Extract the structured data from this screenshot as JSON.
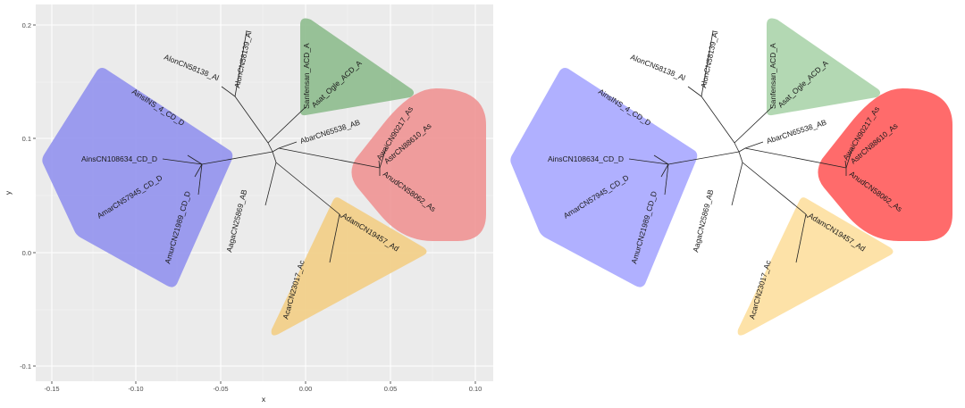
{
  "chart_data": [
    {
      "type": "tree",
      "panel": "left",
      "background": "gray-grid",
      "grid": true,
      "xlabel": "x",
      "ylabel": "y",
      "xlim": [
        -0.16,
        0.11
      ],
      "ylim": [
        -0.1,
        0.2
      ],
      "x_ticks": [
        "-0.15",
        "-0.10",
        "-0.05",
        "0.00",
        "0.05",
        "0.10"
      ],
      "y_ticks": [
        "-0.1",
        "0.0",
        "0.1",
        "0.2"
      ],
      "tips": [
        "AlonCN58138_Al",
        "AlonCN58139_Al",
        "Sanfensan_ACD_A",
        "Asat_Ogle_ACD_A",
        "AbarCN65538_AB",
        "AwaiCN90217_As",
        "AstrCN88610_As",
        "AnudCN58062_As",
        "AdamCN19457_Ad",
        "AcarCN23017_Ac",
        "AagaCN25869_AB",
        "AinsINS_4_CD_D",
        "AinsCN108634_CD_D",
        "AmarCN57945_CD_D",
        "AmurCN21989_CD_D"
      ],
      "groups": [
        {
          "name": "CD_D",
          "color": "#9090ee"
        },
        {
          "name": "ACD_A",
          "color": "#8fbd8f"
        },
        {
          "name": "As",
          "color": "#ef9494"
        },
        {
          "name": "Ac_Ad",
          "color": "#f2d08a"
        }
      ]
    },
    {
      "type": "tree",
      "panel": "right",
      "background": "white",
      "grid": false,
      "tips": [
        "AlonCN58138_Al",
        "AlonCN58139_Al",
        "Sanfensan_ACD_A",
        "Asat_Ogle_ACD_A",
        "AbarCN65538_AB",
        "AwaiCN90217_As",
        "AstrCN88610_As",
        "AnudCN58062_As",
        "AdamCN19457_Ad",
        "AcarCN23017_Ac",
        "AagaCN25869_AB",
        "AinsINS_4_CD_D",
        "AinsCN108634_CD_D",
        "AmarCN57945_CD_D",
        "AmurCN21989_CD_D"
      ],
      "groups": [
        {
          "name": "CD_D",
          "color": "#b0b0ff"
        },
        {
          "name": "ACD_A",
          "color": "#b3d8b3"
        },
        {
          "name": "As",
          "color": "#ff6b6b"
        },
        {
          "name": "Ac_Ad",
          "color": "#fde2a8"
        }
      ]
    }
  ]
}
